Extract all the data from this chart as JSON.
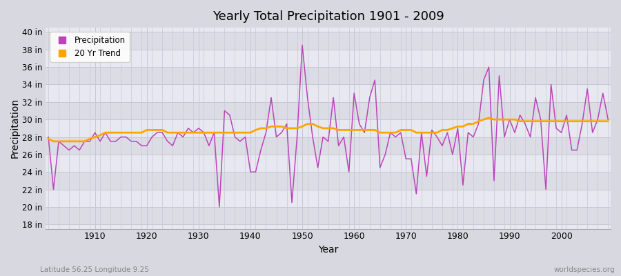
{
  "title": "Yearly Total Precipitation 1901 - 2009",
  "xlabel": "Year",
  "ylabel": "Precipitation",
  "years": [
    1901,
    1902,
    1903,
    1904,
    1905,
    1906,
    1907,
    1908,
    1909,
    1910,
    1911,
    1912,
    1913,
    1914,
    1915,
    1916,
    1917,
    1918,
    1919,
    1920,
    1921,
    1922,
    1923,
    1924,
    1925,
    1926,
    1927,
    1928,
    1929,
    1930,
    1931,
    1932,
    1933,
    1934,
    1935,
    1936,
    1937,
    1938,
    1939,
    1940,
    1941,
    1942,
    1943,
    1944,
    1945,
    1946,
    1947,
    1948,
    1949,
    1950,
    1951,
    1952,
    1953,
    1954,
    1955,
    1956,
    1957,
    1958,
    1959,
    1960,
    1961,
    1962,
    1963,
    1964,
    1965,
    1966,
    1967,
    1968,
    1969,
    1970,
    1971,
    1972,
    1973,
    1974,
    1975,
    1976,
    1977,
    1978,
    1979,
    1980,
    1981,
    1982,
    1983,
    1984,
    1985,
    1986,
    1987,
    1988,
    1989,
    1990,
    1991,
    1992,
    1993,
    1994,
    1995,
    1996,
    1997,
    1998,
    1999,
    2000,
    2001,
    2002,
    2003,
    2004,
    2005,
    2006,
    2007,
    2008,
    2009
  ],
  "precip_in": [
    28.0,
    22.0,
    27.5,
    27.0,
    26.5,
    27.0,
    26.5,
    27.5,
    27.5,
    28.5,
    27.5,
    28.5,
    27.5,
    27.5,
    28.0,
    28.0,
    27.5,
    27.5,
    27.0,
    27.0,
    28.0,
    28.5,
    28.5,
    27.5,
    27.0,
    28.5,
    28.0,
    29.0,
    28.5,
    29.0,
    28.5,
    27.0,
    28.5,
    20.0,
    31.0,
    30.5,
    28.0,
    27.5,
    28.0,
    24.0,
    24.0,
    26.5,
    28.5,
    32.5,
    28.0,
    28.5,
    29.5,
    20.5,
    28.0,
    38.5,
    32.5,
    28.0,
    24.5,
    28.0,
    27.5,
    32.5,
    27.0,
    28.0,
    24.0,
    33.0,
    29.5,
    28.5,
    32.5,
    34.5,
    24.5,
    26.0,
    28.5,
    28.0,
    28.5,
    25.5,
    25.5,
    21.5,
    28.5,
    23.5,
    28.8,
    28.0,
    27.0,
    28.5,
    26.0,
    29.0,
    22.5,
    28.5,
    28.0,
    29.5,
    34.5,
    36.0,
    23.0,
    35.0,
    28.0,
    30.0,
    28.5,
    30.5,
    29.5,
    28.0,
    32.5,
    30.0,
    22.0,
    34.0,
    29.0,
    28.5,
    30.5,
    26.5,
    26.5,
    29.5,
    33.5,
    28.5,
    30.0,
    33.0,
    30.0
  ],
  "trend_years": [
    1901,
    1902,
    1903,
    1904,
    1905,
    1906,
    1907,
    1908,
    1909,
    1910,
    1911,
    1912,
    1913,
    1914,
    1915,
    1916,
    1917,
    1918,
    1919,
    1920,
    1921,
    1922,
    1923,
    1924,
    1925,
    1926,
    1927,
    1928,
    1929,
    1930,
    1931,
    1932,
    1933,
    1934,
    1935,
    1936,
    1937,
    1938,
    1939,
    1940,
    1941,
    1942,
    1943,
    1944,
    1945,
    1946,
    1947,
    1948,
    1949,
    1950,
    1951,
    1952,
    1953,
    1954,
    1955,
    1956,
    1957,
    1958,
    1959,
    1960,
    1961,
    1962,
    1963,
    1964,
    1965,
    1966,
    1967,
    1968,
    1969,
    1970,
    1971,
    1972,
    1973,
    1974,
    1975,
    1976,
    1977,
    1978,
    1979,
    1980,
    1981,
    1982,
    1983,
    1984,
    1985,
    1986,
    1987,
    1988,
    1989,
    1990,
    1991,
    1992,
    1993,
    1994,
    1995,
    1996,
    1997,
    1998,
    1999,
    2000,
    2001,
    2002,
    2003,
    2004,
    2005,
    2006,
    2007,
    2008,
    2009
  ],
  "trend_in": [
    27.8,
    27.5,
    27.5,
    27.5,
    27.5,
    27.5,
    27.5,
    27.5,
    27.8,
    28.0,
    28.2,
    28.5,
    28.5,
    28.5,
    28.5,
    28.5,
    28.5,
    28.5,
    28.5,
    28.8,
    28.8,
    28.8,
    28.8,
    28.5,
    28.5,
    28.5,
    28.5,
    28.5,
    28.5,
    28.5,
    28.5,
    28.5,
    28.5,
    28.5,
    28.5,
    28.5,
    28.5,
    28.5,
    28.5,
    28.5,
    28.8,
    29.0,
    29.0,
    29.2,
    29.2,
    29.2,
    29.0,
    29.0,
    29.0,
    29.2,
    29.5,
    29.5,
    29.2,
    29.0,
    29.0,
    29.0,
    28.8,
    28.8,
    28.8,
    28.8,
    28.8,
    28.8,
    28.8,
    28.8,
    28.5,
    28.5,
    28.5,
    28.5,
    28.8,
    28.8,
    28.8,
    28.5,
    28.5,
    28.5,
    28.5,
    28.5,
    28.8,
    28.8,
    29.0,
    29.2,
    29.2,
    29.5,
    29.5,
    29.8,
    30.0,
    30.2,
    30.0,
    30.0,
    30.0,
    30.0,
    30.0,
    29.8,
    29.8,
    29.8,
    29.8,
    29.8,
    29.8,
    29.8,
    29.8,
    29.8,
    29.8,
    29.8,
    29.8,
    29.8,
    29.8,
    29.8,
    29.8,
    29.8,
    29.8
  ],
  "precip_color": "#bb44bb",
  "trend_color": "#ffa500",
  "fig_bg_color": "#d8d8e0",
  "ax_bg_color": "#e8e8f0",
  "stripe_color_dark": "#dcdce4",
  "stripe_color_light": "#e8e8f0",
  "grid_color": "#c8c8d4",
  "grid_minor_color": "#c8c8d4",
  "ytick_labels": [
    "18 in",
    "20 in",
    "22 in",
    "24 in",
    "26 in",
    "28 in",
    "30 in",
    "32 in",
    "34 in",
    "36 in",
    "38 in",
    "40 in"
  ],
  "ytick_values": [
    18,
    20,
    22,
    24,
    26,
    28,
    30,
    32,
    34,
    36,
    38,
    40
  ],
  "ylim": [
    17.5,
    40.5
  ],
  "xlim": [
    1900.5,
    2009.5
  ],
  "xticks": [
    1910,
    1920,
    1930,
    1940,
    1950,
    1960,
    1970,
    1980,
    1990,
    2000
  ],
  "legend_labels": [
    "Precipitation",
    "20 Yr Trend"
  ],
  "footnote_left": "Latitude 56.25 Longitude 9.25",
  "footnote_right": "worldspecies.org"
}
